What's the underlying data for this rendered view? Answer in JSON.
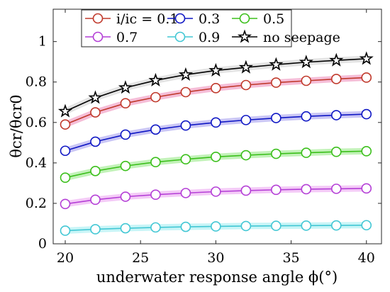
{
  "chart_data": {
    "type": "line",
    "xlabel": "underwater response angle ϕ(°)",
    "ylabel": "θcr/θcr0",
    "xlim": [
      19.2,
      41
    ],
    "ylim": [
      0,
      1.16
    ],
    "xticks": [
      20,
      25,
      30,
      35,
      40
    ],
    "yticks": [
      0,
      0.2,
      0.4,
      0.6,
      0.8,
      1
    ],
    "x": [
      20,
      22,
      24,
      26,
      28,
      30,
      32,
      34,
      36,
      38,
      40
    ],
    "grid": false,
    "legend_position": "top-left",
    "series": [
      {
        "name": "i/ic = 0.1",
        "color": "#c0392b",
        "marker": "circle",
        "halo": "#f1a7c9",
        "values": [
          0.59,
          0.65,
          0.695,
          0.725,
          0.75,
          0.77,
          0.785,
          0.797,
          0.806,
          0.815,
          0.822
        ]
      },
      {
        "name": "0.3",
        "color": "#0f17c4",
        "marker": "circle",
        "halo": "#b8b3f2",
        "values": [
          0.46,
          0.505,
          0.54,
          0.565,
          0.585,
          0.6,
          0.612,
          0.622,
          0.63,
          0.636,
          0.641
        ]
      },
      {
        "name": "0.5",
        "color": "#3bbf1b",
        "marker": "circle",
        "halo": "#aeeea0",
        "values": [
          0.327,
          0.36,
          0.385,
          0.404,
          0.418,
          0.43,
          0.438,
          0.445,
          0.45,
          0.455,
          0.458
        ]
      },
      {
        "name": "0.7",
        "color": "#b43fd6",
        "marker": "circle",
        "halo": "#f0b8f4",
        "values": [
          0.197,
          0.218,
          0.233,
          0.243,
          0.251,
          0.258,
          0.263,
          0.267,
          0.27,
          0.272,
          0.274
        ]
      },
      {
        "name": "0.9",
        "color": "#42c7d4",
        "marker": "circle",
        "halo": "#b5f2f4",
        "values": [
          0.065,
          0.072,
          0.077,
          0.081,
          0.084,
          0.086,
          0.088,
          0.089,
          0.09,
          0.091,
          0.092
        ]
      },
      {
        "name": "no seepage",
        "color": "#000000",
        "marker": "star",
        "halo": "#d9d9d9",
        "values": [
          0.655,
          0.722,
          0.772,
          0.808,
          0.836,
          0.857,
          0.872,
          0.886,
          0.898,
          0.907,
          0.915
        ]
      }
    ]
  }
}
